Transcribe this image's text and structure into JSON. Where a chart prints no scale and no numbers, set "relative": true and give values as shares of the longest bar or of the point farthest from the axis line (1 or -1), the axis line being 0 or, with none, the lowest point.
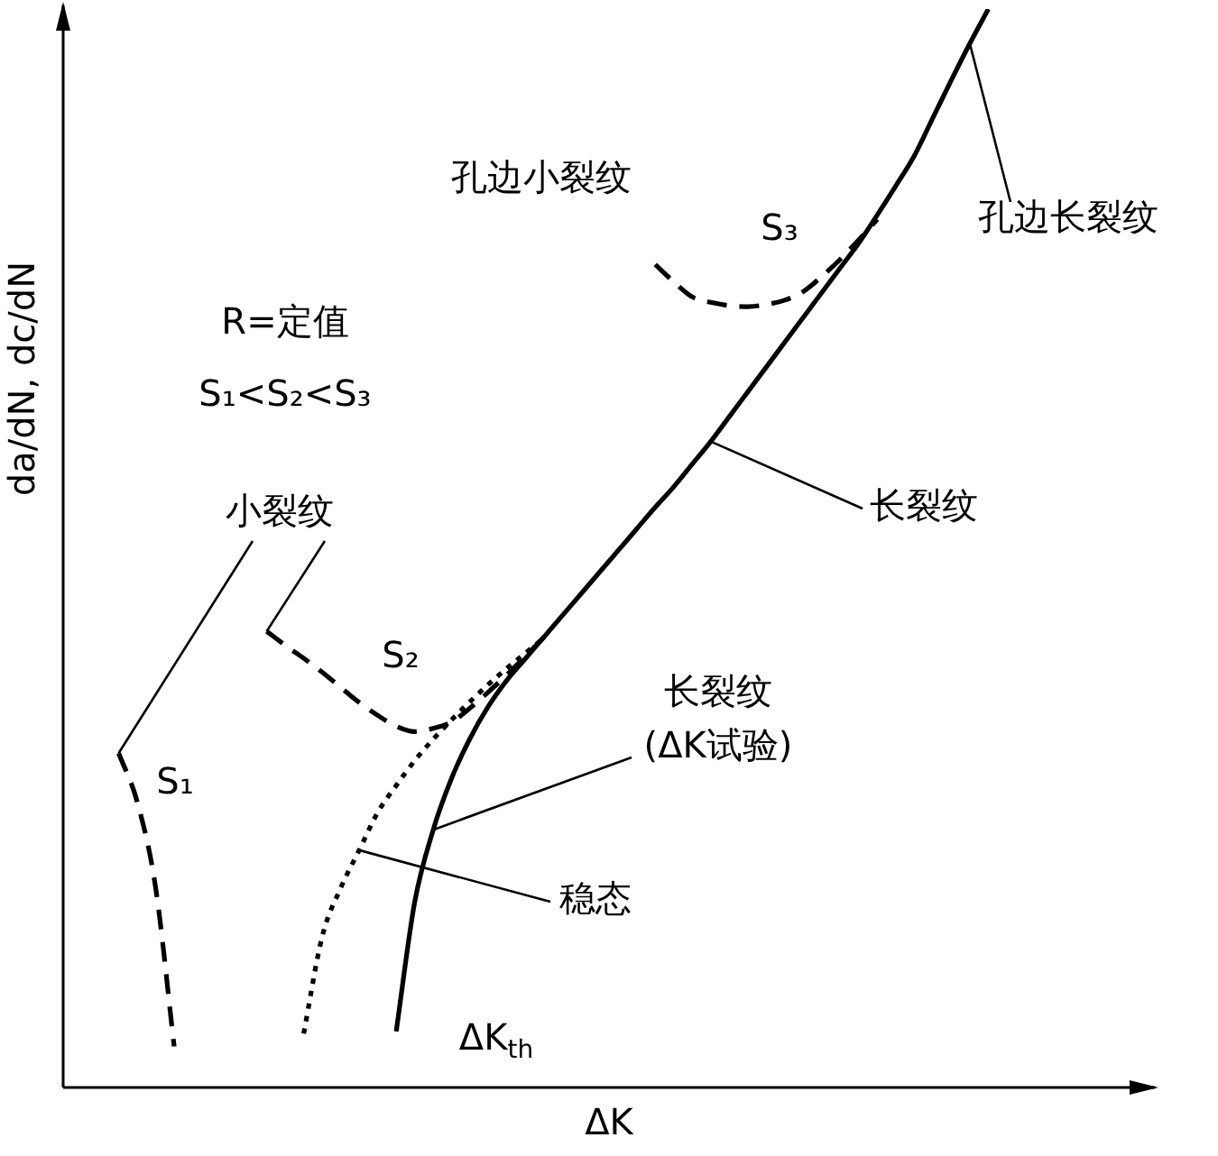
{
  "chart_data": {
    "type": "line",
    "relative": true,
    "xlabel": "ΔK",
    "ylabel": "da/dN, dc/dN",
    "legend": false,
    "marker": "none",
    "categories": [
      null,
      null,
      null,
      null,
      null,
      null,
      null,
      null,
      null,
      null,
      null,
      null,
      null,
      null,
      null,
      null,
      null,
      null,
      null,
      null,
      null,
      null,
      null,
      null,
      null,
      null,
      null,
      null,
      null,
      null,
      null,
      null,
      null,
      null,
      null,
      null,
      null,
      null,
      null,
      null,
      null,
      null,
      null,
      null,
      null,
      null,
      null,
      null,
      null,
      null,
      null,
      null,
      null,
      null,
      null,
      null,
      null,
      null,
      null,
      null
    ],
    "series": [
      {
        "name": "S₁",
        "color": "#000000",
        "line_style": "dashed",
        "values": [
          null,
          null,
          null,
          0.31,
          0.265,
          0.185,
          0.038,
          null,
          null,
          null,
          null,
          null,
          null,
          null,
          null,
          null,
          null,
          null,
          null,
          null,
          null,
          null,
          null,
          null,
          null,
          null,
          null,
          null,
          null,
          null,
          null,
          null,
          null,
          null,
          null,
          null,
          null,
          null,
          null,
          null,
          null,
          null,
          null,
          null,
          null,
          null,
          null,
          null,
          null,
          null,
          null,
          null,
          null,
          null,
          null,
          null,
          null,
          null,
          null,
          null
        ]
      },
      {
        "name": "S₂",
        "color": "#000000",
        "line_style": "dashed",
        "values": [
          null,
          null,
          null,
          null,
          null,
          null,
          null,
          null,
          null,
          null,
          null,
          0.423,
          0.41,
          0.398,
          0.385,
          0.371,
          0.357,
          0.345,
          0.335,
          0.33,
          0.333,
          0.339,
          0.352,
          0.367,
          0.383,
          0.4,
          0.418,
          null,
          null,
          null,
          null,
          null,
          null,
          null,
          null,
          null,
          null,
          null,
          null,
          null,
          null,
          null,
          null,
          null,
          null,
          null,
          null,
          null,
          null,
          null,
          null,
          null,
          null,
          null,
          null,
          null,
          null,
          null,
          null,
          null
        ]
      },
      {
        "name": "S₃",
        "color": "#000000",
        "line_style": "dashed",
        "values": [
          null,
          null,
          null,
          null,
          null,
          null,
          null,
          null,
          null,
          null,
          null,
          null,
          null,
          null,
          null,
          null,
          null,
          null,
          null,
          null,
          null,
          null,
          null,
          null,
          null,
          null,
          null,
          null,
          null,
          null,
          null,
          null,
          0.763,
          0.747,
          0.733,
          0.728,
          0.725,
          0.724,
          0.726,
          0.73,
          0.738,
          0.752,
          0.768,
          0.786,
          0.805,
          null,
          null,
          null,
          null,
          null,
          null,
          null,
          null,
          null,
          null,
          null,
          null,
          null,
          null,
          null
        ]
      },
      {
        "name": "稳态",
        "color": "#000000",
        "line_style": "dotted",
        "values": [
          null,
          null,
          null,
          null,
          null,
          null,
          null,
          null,
          null,
          null,
          null,
          null,
          null,
          0.05,
          0.14,
          0.185,
          0.22,
          0.255,
          0.28,
          0.303,
          0.323,
          0.341,
          0.358,
          0.374,
          0.389,
          0.403,
          0.417,
          null,
          null,
          null,
          null,
          null,
          null,
          null,
          null,
          null,
          null,
          null,
          null,
          null,
          null,
          null,
          null,
          null,
          null,
          null,
          null,
          null,
          null,
          null,
          null,
          null,
          null,
          null,
          null,
          null,
          null,
          null,
          null,
          null
        ]
      },
      {
        "color": "#000000",
        "line_style": "solid",
        "values": [
          null,
          null,
          null,
          null,
          null,
          null,
          null,
          null,
          null,
          null,
          null,
          null,
          null,
          null,
          null,
          null,
          null,
          null,
          0.052,
          0.172,
          0.239,
          0.287,
          0.324,
          0.354,
          0.378,
          0.398,
          0.418,
          0.438,
          0.458,
          0.478,
          0.498,
          0.518,
          0.538,
          0.557,
          0.578,
          0.599,
          0.622,
          0.645,
          0.668,
          0.691,
          0.714,
          0.737,
          0.76,
          0.783,
          0.809,
          0.836,
          0.864,
          0.899,
          0.934,
          0.968,
          1.0,
          null,
          null,
          null,
          null,
          null,
          null,
          null,
          null,
          null
        ]
      }
    ],
    "annotations": [
      "孔边小裂纹",
      "孔边长裂纹",
      "R=定值",
      "S₁<S₂<S₃",
      "小裂纹",
      "长裂纹",
      "长裂纹\n(ΔK试验)",
      "ΔK$_{th}$"
    ]
  }
}
